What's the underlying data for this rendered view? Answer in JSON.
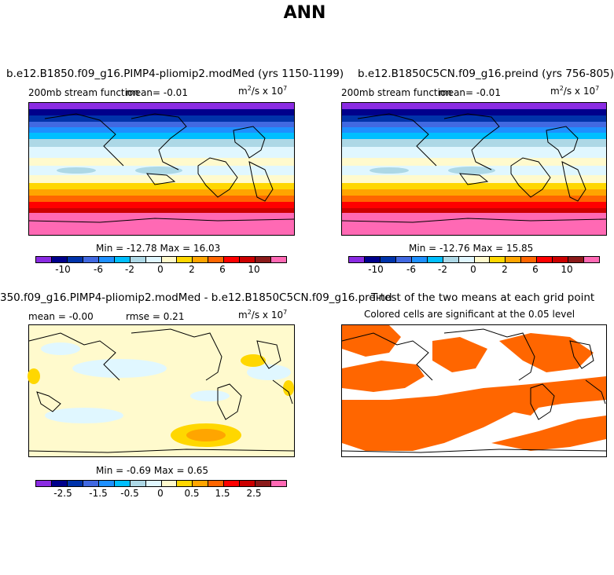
{
  "main_title": "ANN",
  "colorbar_colors": [
    "#8a2be2",
    "#00008b",
    "#0033aa",
    "#4169e1",
    "#1e90ff",
    "#00bfff",
    "#add8e6",
    "#e0f7ff",
    "#fffacd",
    "#ffd700",
    "#ffa500",
    "#ff6600",
    "#ff0000",
    "#cc0000",
    "#8b1a1a",
    "#ff69b4"
  ],
  "panels": {
    "p1": {
      "title": "b.e12.B1850.f09_g16.PIMP4-pliomip2.modMed (yrs 1150-1199)",
      "variable": "200mb stream function",
      "mean_text": "mean=   -0.01",
      "units": "m",
      "units_sup": "2",
      "units_rest": "/s x 10",
      "units_exp": "7",
      "minmax": "Min = -12.78 Max =  16.03",
      "ticks": [
        "-10",
        "-6",
        "-2",
        "0",
        "2",
        "6",
        "10"
      ]
    },
    "p2": {
      "title": "b.e12.B1850C5CN.f09_g16.preind (yrs 756-805)",
      "variable": "200mb stream function",
      "mean_text": "mean=   -0.01",
      "units": "m",
      "units_sup": "2",
      "units_rest": "/s x 10",
      "units_exp": "7",
      "minmax": "Min = -12.76 Max =  15.85",
      "ticks": [
        "-10",
        "-6",
        "-2",
        "0",
        "2",
        "6",
        "10"
      ]
    },
    "p3": {
      "title": "350.f09_g16.PIMP4-pliomip2.modMed - b.e12.B1850C5CN.f09_g16.preind",
      "mean_text": "mean =  -0.00",
      "rmse_text": "rmse =   0.21",
      "units": "m",
      "units_sup": "2",
      "units_rest": "/s x 10",
      "units_exp": "7",
      "minmax": "Min =  -0.69 Max =   0.65",
      "ticks": [
        "-2.5",
        "-1.5",
        "-0.5",
        "0",
        "0.5",
        "1.5",
        "2.5"
      ]
    },
    "p4": {
      "title": "T-test of the two means at each grid point",
      "subtitle": "Colored cells are significant at the 0.05 level",
      "significant_color": "#ff6600"
    }
  },
  "chart_data": [
    {
      "type": "heatmap",
      "title": "b.e12.B1850.f09_g16.PIMP4-pliomip2.modMed (yrs 1150-1199)",
      "variable": "200mb stream function",
      "units": "m2/s x 10^7",
      "mean": -0.01,
      "min": -12.78,
      "max": 16.03,
      "colorbar_ticks": [
        -10,
        -6,
        -2,
        0,
        2,
        6,
        10
      ]
    },
    {
      "type": "heatmap",
      "title": "b.e12.B1850C5CN.f09_g16.preind (yrs 756-805)",
      "variable": "200mb stream function",
      "units": "m2/s x 10^7",
      "mean": -0.01,
      "min": -12.76,
      "max": 15.85,
      "colorbar_ticks": [
        -10,
        -6,
        -2,
        0,
        2,
        6,
        10
      ]
    },
    {
      "type": "heatmap",
      "title": "350.f09_g16.PIMP4-pliomip2.modMed - b.e12.B1850C5CN.f09_g16.preind",
      "units": "m2/s x 10^7",
      "mean": -0.0,
      "rmse": 0.21,
      "min": -0.69,
      "max": 0.65,
      "colorbar_ticks": [
        -2.5,
        -1.5,
        -0.5,
        0,
        0.5,
        1.5,
        2.5
      ]
    },
    {
      "type": "heatmap",
      "title": "T-test of the two means at each grid point",
      "subtitle": "Colored cells are significant at the 0.05 level"
    }
  ]
}
